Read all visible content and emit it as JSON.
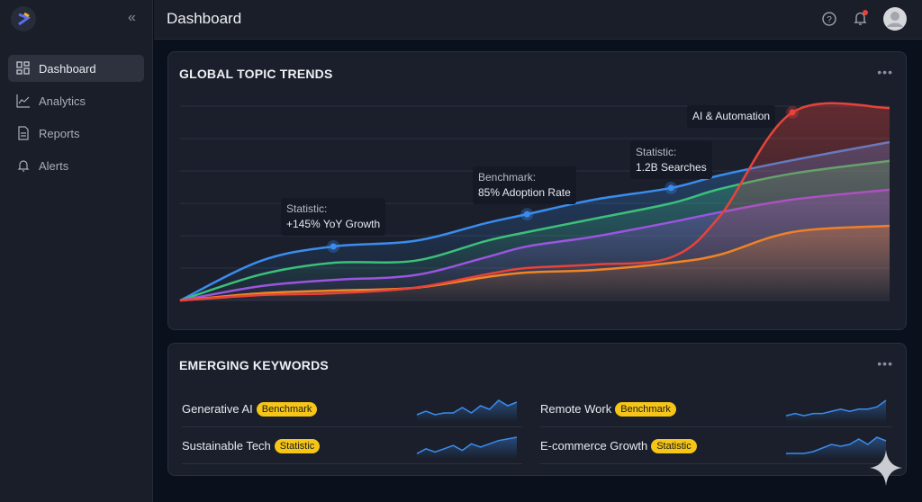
{
  "sidebar": {
    "collapse_icon": "chevrons-left-icon",
    "items": [
      {
        "label": "Dashboard",
        "icon": "grid-icon",
        "active": true
      },
      {
        "label": "Analytics",
        "icon": "chart-line-icon"
      },
      {
        "label": "Reports",
        "icon": "document-icon"
      },
      {
        "label": "Alerts",
        "icon": "bell-icon"
      }
    ]
  },
  "header": {
    "title": "Dashboard",
    "icons": [
      "help-icon",
      "notification-bell-icon",
      "user-avatar"
    ]
  },
  "trends": {
    "title": "GLOBAL TOPIC TRENDS",
    "menu": "•••",
    "annotations": [
      {
        "label": "Statistic:",
        "value": "+145% YoY Growth"
      },
      {
        "label": "Benchmark:",
        "value": "85% Adoption Rate"
      },
      {
        "label": "Statistic:",
        "value": "1.2B Searches"
      },
      {
        "label": "",
        "value": "AI & Automation"
      }
    ]
  },
  "chart_data": {
    "type": "area",
    "title": "GLOBAL TOPIC TRENDS",
    "xlabel": "",
    "ylabel": "",
    "ylim": [
      0,
      100
    ],
    "grid": true,
    "x": [
      0,
      11.4,
      21.6,
      33,
      43.1,
      48.9,
      58.4,
      69.2,
      76.1,
      86.3,
      100
    ],
    "series": [
      {
        "name": "blue",
        "color": "#3b8ced",
        "values": [
          0,
          20.4,
          27.8,
          30.6,
          39.8,
          44.4,
          51.9,
          57.9,
          64.4,
          72.2,
          81.5
        ]
      },
      {
        "name": "green",
        "color": "#3cc07a",
        "values": [
          0,
          13.4,
          19.4,
          20.4,
          30.6,
          35.2,
          42.1,
          50,
          57.4,
          65.3,
          71.8
        ]
      },
      {
        "name": "purple",
        "color": "#9b55e0",
        "values": [
          0,
          7.4,
          10.6,
          13,
          22.2,
          27.8,
          32.9,
          40.3,
          45.4,
          51.9,
          57
        ]
      },
      {
        "name": "orange",
        "color": "#f08a24",
        "values": [
          0,
          3.7,
          5.1,
          6.5,
          12,
          14.4,
          15.7,
          19.4,
          23.6,
          35.2,
          38.4
        ]
      },
      {
        "name": "AI & Automation",
        "color": "#e8433a",
        "values": [
          0,
          2.8,
          3.7,
          6.5,
          13.4,
          16.7,
          18.5,
          22.2,
          43.5,
          96.8,
          99.1
        ]
      }
    ],
    "markers": [
      {
        "series": "blue",
        "x": 21.6
      },
      {
        "series": "blue",
        "x": 48.9
      },
      {
        "series": "blue",
        "x": 69.2
      },
      {
        "series": "AI & Automation",
        "x": 86.3
      }
    ]
  },
  "keywords": {
    "title": "EMERGING KEYWORDS",
    "menu": "•••",
    "items": [
      {
        "name": "Generative AI",
        "badge": "Benchmark",
        "spark": [
          3,
          5,
          3,
          4,
          4,
          7,
          4,
          8,
          6,
          11,
          8,
          10
        ]
      },
      {
        "name": "Remote Work",
        "badge": "Benchmark",
        "spark": [
          2,
          3,
          2,
          3,
          3,
          4,
          5,
          4,
          5,
          5,
          6,
          9
        ]
      },
      {
        "name": "Sustainable Tech",
        "badge": "Statistic",
        "spark": [
          2,
          5,
          3,
          5,
          7,
          4,
          8,
          6,
          8,
          10,
          11,
          12
        ]
      },
      {
        "name": "E-commerce Growth",
        "badge": "Statistic",
        "spark": [
          2,
          2,
          2,
          3,
          5,
          7,
          6,
          7,
          10,
          7,
          11,
          9
        ]
      }
    ]
  }
}
